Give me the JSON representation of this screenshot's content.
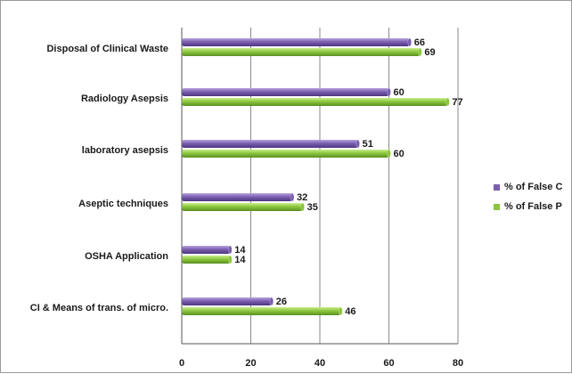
{
  "chart_data": {
    "type": "bar",
    "orientation": "horizontal",
    "categories": [
      "Disposal of Clinical  Waste",
      "Radiology Asepsis",
      "laboratory asepsis",
      "Aseptic techniques",
      "OSHA Application",
      "CI & Means of trans. of micro."
    ],
    "series": [
      {
        "name": "% of False C",
        "color": "#7b5fb0",
        "values": [
          66,
          60,
          51,
          32,
          14,
          26
        ]
      },
      {
        "name": "% of False P",
        "color": "#8cc63f",
        "values": [
          69,
          77,
          60,
          35,
          14,
          46
        ]
      }
    ],
    "xticks": [
      "0",
      "20",
      "40",
      "60",
      "80"
    ],
    "xlim": [
      0,
      80
    ],
    "grid": true,
    "legend_position": "right"
  }
}
